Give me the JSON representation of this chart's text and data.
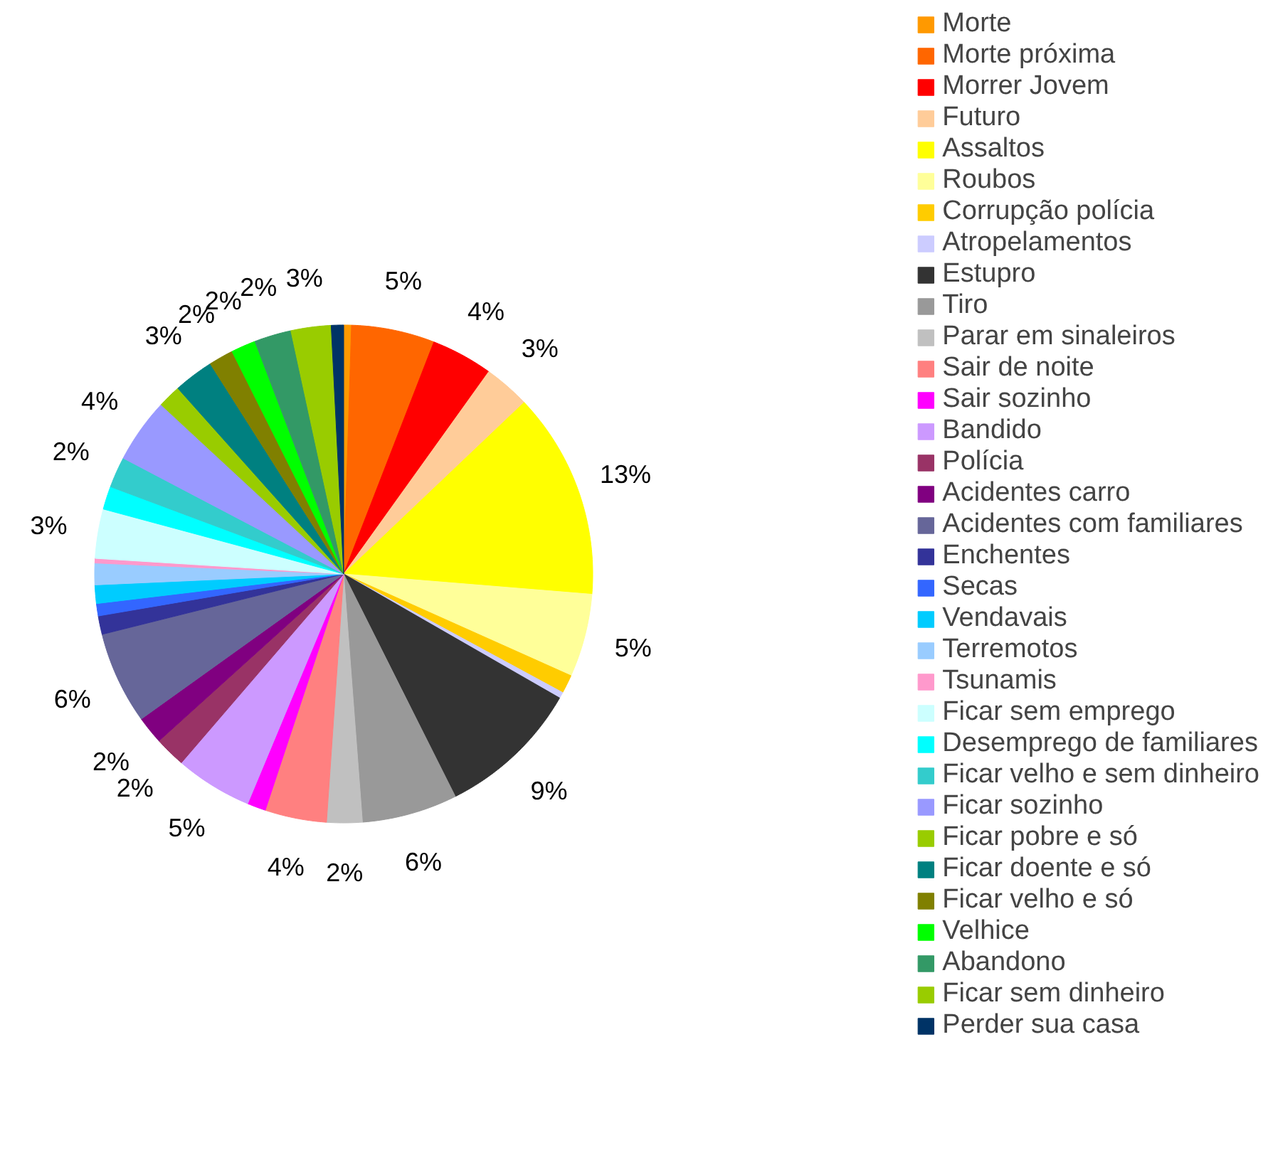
{
  "chart_data": {
    "type": "pie",
    "legend": "right",
    "categories": [
      "Morte",
      "Morte próxima",
      "Morrer Jovem",
      "Futuro",
      "Assaltos",
      "Roubos",
      "Corrupção polícia",
      "Atropelamentos",
      "Estupro",
      "Tiro",
      "Parar em sinaleiros",
      "Sair de noite",
      "Sair sozinho",
      "Bandido",
      "Polícia",
      "Acidentes carro",
      "Acidentes com familiares",
      "Enchentes",
      "Secas",
      "Vendavais",
      "Terremotos",
      "Tsunamis",
      "Ficar sem emprego",
      "Desemprego de familiares",
      "Ficar velho e sem dinheiro",
      "Ficar sozinho",
      "Ficar pobre e só",
      "Ficar doente e só",
      "Ficar velho e só",
      "Velhice",
      "Abandono",
      "Ficar sem dinheiro",
      "Perder sua casa"
    ],
    "values": [
      0.5,
      5.4,
      4,
      3,
      13.4,
      5.4,
      1.2,
      0.4,
      9.3,
      6.2,
      2.3,
      4,
      1.2,
      5,
      2,
      1.8,
      6,
      1.2,
      0.8,
      1.2,
      1.4,
      0.3,
      3.2,
      1.5,
      2,
      4.2,
      1.5,
      2.6,
      1.6,
      1.6,
      2.4,
      2.6,
      0.8
    ],
    "colors": [
      "#ff9900",
      "#ff6600",
      "#ff0000",
      "#ffcc99",
      "#ffff00",
      "#ffff99",
      "#ffcc00",
      "#ccccff",
      "#333333",
      "#999999",
      "#c0c0c0",
      "#ff8080",
      "#ff00ff",
      "#cc99ff",
      "#993366",
      "#800080",
      "#666699",
      "#333399",
      "#3366ff",
      "#00ccff",
      "#99ccff",
      "#ff99cc",
      "#ccffff",
      "#00ffff",
      "#33cccc",
      "#9999ff",
      "#99cc00",
      "#008080",
      "#808000",
      "#00ff00",
      "#339966",
      "#99cc00",
      "#003366"
    ],
    "value_labels": [
      null,
      "5%",
      "4%",
      "3%",
      "13%",
      "5%",
      null,
      null,
      "9%",
      "6%",
      "2%",
      "4%",
      null,
      "5%",
      "2%",
      "2%",
      "6%",
      null,
      null,
      null,
      null,
      null,
      "3%",
      null,
      "2%",
      "4%",
      null,
      "3%",
      "2%",
      "2%",
      "2%",
      "3%",
      null
    ]
  }
}
